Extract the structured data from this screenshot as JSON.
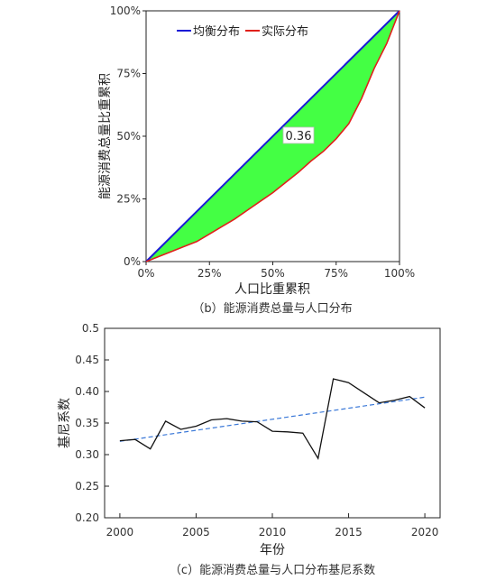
{
  "colors": {
    "equal_line": "#1a1ad6",
    "actual_line": "#e0201b",
    "fill": "#44ff44",
    "trend": "#3a78d8",
    "gini_line": "#111111"
  },
  "chart_data": [
    {
      "type": "line",
      "caption": "（b）能源消费总量与人口分布",
      "xlabel": "人口比重累积",
      "ylabel": "能源消费总量比重累积",
      "xlim": [
        0,
        100
      ],
      "ylim": [
        0,
        100
      ],
      "x_ticks": [
        "0%",
        "25%",
        "50%",
        "75%",
        "100%"
      ],
      "y_ticks": [
        "0%",
        "25%",
        "50%",
        "75%",
        "100%"
      ],
      "legend": [
        "均衡分布",
        "实际分布"
      ],
      "legend_position": "top-left",
      "annotation": "0.36",
      "series": [
        {
          "name": "均衡分布",
          "x": [
            0,
            100
          ],
          "y": [
            0,
            100
          ]
        },
        {
          "name": "实际分布",
          "x": [
            0,
            5,
            10,
            15,
            20,
            25,
            30,
            35,
            40,
            45,
            50,
            55,
            60,
            65,
            70,
            75,
            80,
            85,
            90,
            95,
            100
          ],
          "y": [
            0,
            2,
            4,
            6,
            8,
            11,
            14,
            17,
            20.5,
            24,
            27.5,
            31.5,
            35.5,
            40,
            44,
            49,
            55,
            65,
            77,
            87,
            100
          ]
        }
      ]
    },
    {
      "type": "line",
      "caption": "（c）能源消费总量与人口分布基尼系数",
      "xlabel": "年份",
      "ylabel": "基尼系数",
      "xlim": [
        1999,
        2021
      ],
      "ylim": [
        0.2,
        0.5
      ],
      "x_ticks": [
        "2000",
        "2005",
        "2010",
        "2015",
        "2020"
      ],
      "y_ticks": [
        "0.20",
        "0.25",
        "0.30",
        "0.35",
        "0.40",
        "0.45",
        "0.5"
      ],
      "grid": false,
      "series": [
        {
          "style": "solid",
          "x": [
            2000,
            2001,
            2002,
            2003,
            2004,
            2005,
            2006,
            2007,
            2008,
            2009,
            2010,
            2011,
            2012,
            2013,
            2014,
            2015,
            2016,
            2017,
            2018,
            2019,
            2020
          ],
          "y": [
            0.322,
            0.324,
            0.309,
            0.353,
            0.34,
            0.345,
            0.355,
            0.357,
            0.353,
            0.352,
            0.337,
            0.336,
            0.334,
            0.294,
            0.42,
            0.414,
            0.398,
            0.382,
            0.386,
            0.392,
            0.374
          ]
        },
        {
          "style": "dashed",
          "x": [
            2000,
            2020
          ],
          "y": [
            0.321,
            0.391
          ]
        }
      ]
    }
  ]
}
